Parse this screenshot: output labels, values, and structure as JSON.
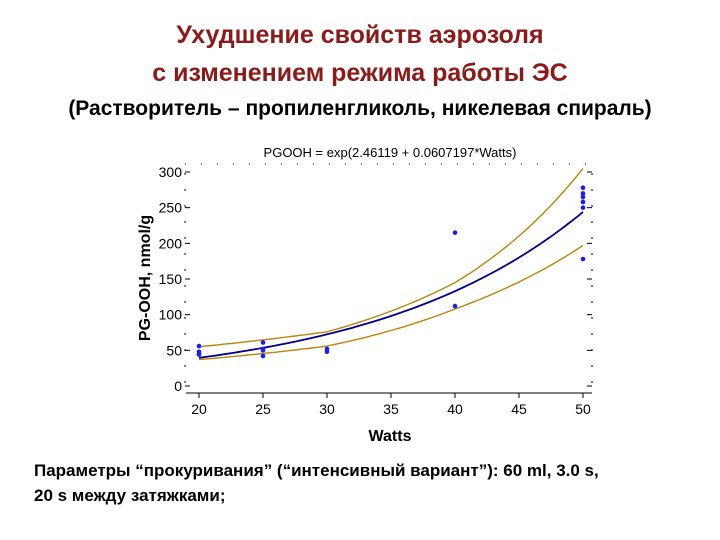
{
  "slide": {
    "title_line1": "Ухудшение свойств аэрозоля",
    "title_line2": "с изменением режима работы ЭС",
    "subtitle": "(Растворитель – пропиленгликоль, никелевая спираль)",
    "footer_line1": "Параметры “прокуривания” (“интенсивный вариант”): 60 ml, 3.0 s,",
    "footer_line2": "20 s между затяжками;"
  },
  "colors": {
    "title": "#8b1a1a",
    "fit_line": "#00008b",
    "confidence_band": "#b8860b",
    "points": "#1a1aff"
  },
  "chart_data": {
    "type": "scatter",
    "title": "PGOOH = exp(2.46119 + 0.0607197*Watts)",
    "xlabel": "Watts",
    "ylabel": "PG-OOH, nmol/g",
    "xlim": [
      20,
      50
    ],
    "ylim": [
      0,
      300
    ],
    "x_ticks": [
      20,
      25,
      30,
      35,
      40,
      45,
      50
    ],
    "y_ticks": [
      0,
      50,
      100,
      150,
      200,
      250,
      300
    ],
    "fit": {
      "intercept": 2.46119,
      "slope": 0.0607197
    },
    "band": {
      "lower": [
        [
          20,
          37
        ],
        [
          30,
          56
        ],
        [
          40,
          108
        ],
        [
          50,
          197
        ]
      ],
      "upper": [
        [
          20,
          55
        ],
        [
          30,
          76
        ],
        [
          40,
          145
        ],
        [
          50,
          305
        ]
      ]
    },
    "series": [
      {
        "points": [
          [
            20,
            56
          ],
          [
            20,
            48
          ],
          [
            20,
            45
          ],
          [
            20,
            44
          ],
          [
            25,
            61
          ],
          [
            25,
            52
          ],
          [
            25,
            50
          ],
          [
            25,
            42
          ],
          [
            30,
            52
          ],
          [
            30,
            48
          ],
          [
            40,
            215
          ],
          [
            40,
            112
          ],
          [
            50,
            278
          ],
          [
            50,
            270
          ],
          [
            50,
            265
          ],
          [
            50,
            258
          ],
          [
            50,
            250
          ],
          [
            50,
            178
          ]
        ]
      }
    ],
    "grid": false
  }
}
